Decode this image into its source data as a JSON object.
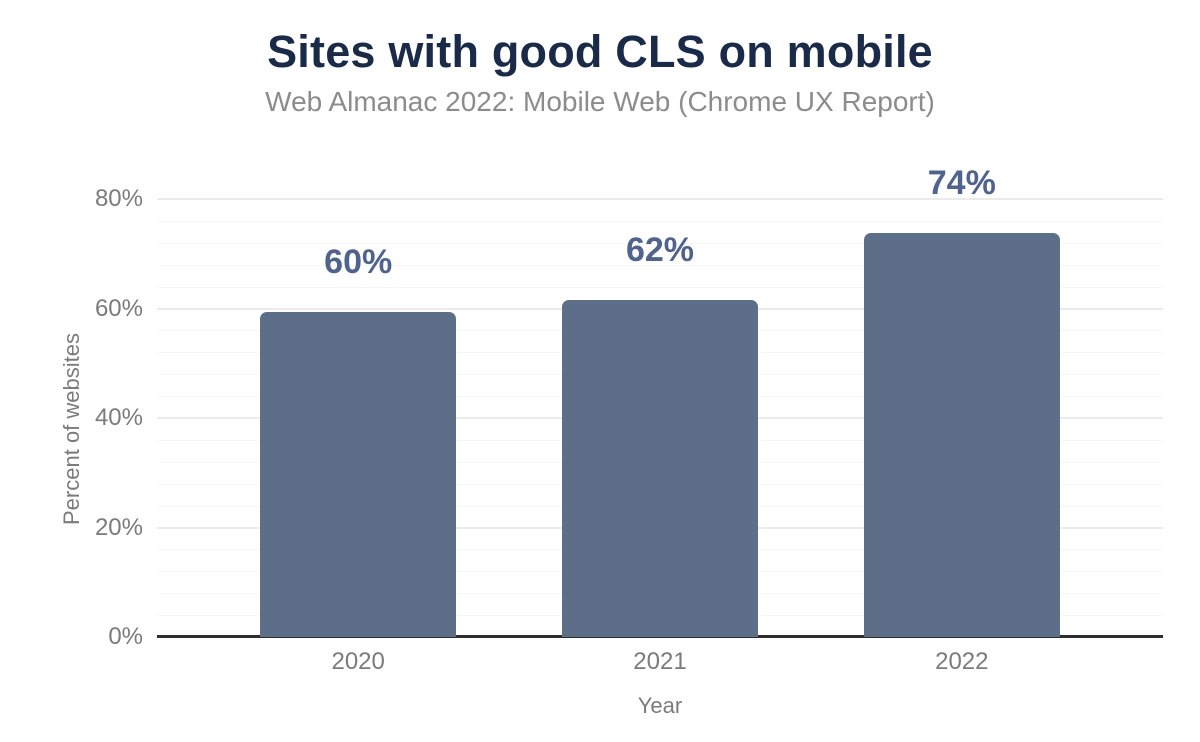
{
  "chart_data": {
    "type": "bar",
    "title": "Sites with good CLS on mobile",
    "subtitle": "Web Almanac 2022: Mobile Web (Chrome UX Report)",
    "xlabel": "Year",
    "ylabel": "Percent of websites",
    "categories": [
      "2020",
      "2021",
      "2022"
    ],
    "values": [
      60,
      62,
      74
    ],
    "data_labels": [
      "60%",
      "62%",
      "74%"
    ],
    "bar_top_percent": [
      59.4,
      61.5,
      73.8
    ],
    "y_ticks": [
      "0%",
      "20%",
      "40%",
      "60%",
      "80%"
    ],
    "y_tick_values": [
      0,
      20,
      40,
      60,
      80
    ],
    "ylim": [
      0,
      87
    ],
    "grid": {
      "major_interval_pct": 20,
      "minor_interval_pct": 4
    },
    "legend": "none",
    "colors": {
      "title": "#1a2b49",
      "subtitle": "#8c8c8c",
      "axis_text": "#7b7b7b",
      "axis_line": "#2d2d2d",
      "gridline_major": "#ebebeb",
      "gridline_minor": "#f6f6f6",
      "bar": "#5d6f88",
      "data_label": "#4f638e",
      "background": "#ffffff"
    }
  }
}
